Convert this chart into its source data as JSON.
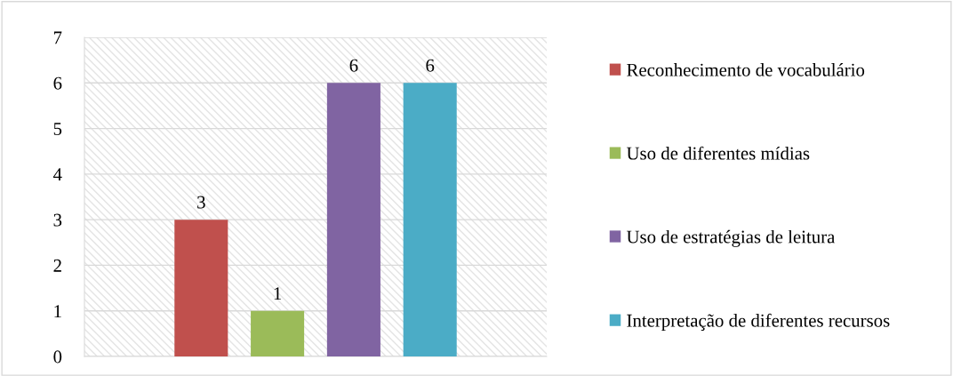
{
  "chart_data": {
    "type": "bar",
    "categories": [
      null
    ],
    "series": [
      {
        "name": "Reconhecimento de vocabulário",
        "color": "#c0504d",
        "values": [
          3
        ]
      },
      {
        "name": "Uso de diferentes mídias",
        "color": "#9bbb59",
        "values": [
          1
        ]
      },
      {
        "name": "Uso de estratégias de leitura",
        "color": "#8064a2",
        "values": [
          6
        ]
      },
      {
        "name": "Interpretação de diferentes recursos",
        "color": "#4bacc6",
        "values": [
          6
        ]
      }
    ],
    "ylim": [
      0,
      7
    ],
    "yticks": [
      0,
      1,
      2,
      3,
      4,
      5,
      6,
      7
    ],
    "grid": "y",
    "legend": "right",
    "data_labels": true
  }
}
